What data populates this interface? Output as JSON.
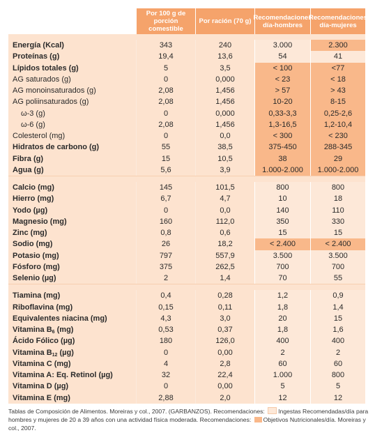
{
  "headers": [
    "",
    "Por 100 g de porción comestible",
    "Por ración (70 g)",
    "Recomendaciones día-hombres",
    "Recomendaciones día-mujeres"
  ],
  "groups": [
    [
      {
        "label": "Energía (Kcal)",
        "bold": true,
        "v": [
          "343",
          "240",
          "3.000",
          "2.300"
        ],
        "t": [
          "r",
          "o"
        ]
      },
      {
        "label": "Proteínas (g)",
        "bold": true,
        "v": [
          "19,4",
          "13,6",
          "54",
          "41"
        ],
        "t": [
          "r",
          "r"
        ]
      },
      {
        "label": "Lípidos totales (g)",
        "bold": true,
        "v": [
          "5",
          "3,5",
          "< 100",
          "<77"
        ],
        "t": [
          "o",
          "o"
        ]
      },
      {
        "label": "AG saturados (g)",
        "bold": false,
        "v": [
          "0",
          "0,000",
          "< 23",
          "< 18"
        ],
        "t": [
          "o",
          "o"
        ]
      },
      {
        "label": "AG monoinsaturados (g)",
        "bold": false,
        "v": [
          "2,08",
          "1,456",
          "> 57",
          "> 43"
        ],
        "t": [
          "o",
          "o"
        ]
      },
      {
        "label": "AG poliinsaturados (g)",
        "bold": false,
        "v": [
          "2,08",
          "1,456",
          "10-20",
          "8-15"
        ],
        "t": [
          "o",
          "o"
        ]
      },
      {
        "label": "ω-3 (g)",
        "bold": false,
        "indent": true,
        "v": [
          "0",
          "0,000",
          "0,33-3,3",
          "0,25-2,6"
        ],
        "t": [
          "o",
          "o"
        ]
      },
      {
        "label": "ω-6 (g)",
        "bold": false,
        "indent": true,
        "v": [
          "2,08",
          "1,456",
          "1,3-16,5",
          "1,2-10,4"
        ],
        "t": [
          "o",
          "o"
        ]
      },
      {
        "label": "Colesterol (mg)",
        "bold": false,
        "v": [
          "0",
          "0,0",
          "< 300",
          "< 230"
        ],
        "t": [
          "o",
          "o"
        ]
      },
      {
        "label": "Hidratos de carbono (g)",
        "bold": true,
        "v": [
          "55",
          "38,5",
          "375-450",
          "288-345"
        ],
        "t": [
          "o",
          "o"
        ]
      },
      {
        "label": "Fibra (g)",
        "bold": true,
        "v": [
          "15",
          "10,5",
          "38",
          "29"
        ],
        "t": [
          "o",
          "o"
        ]
      },
      {
        "label": "Agua (g)",
        "bold": true,
        "v": [
          "5,6",
          "3,9",
          "1.000-2.000",
          "1.000-2.000"
        ],
        "t": [
          "o",
          "o"
        ]
      }
    ],
    [
      {
        "label": "Calcio (mg)",
        "bold": true,
        "v": [
          "145",
          "101,5",
          "800",
          "800"
        ],
        "t": [
          "r",
          "r"
        ]
      },
      {
        "label": "Hierro (mg)",
        "bold": true,
        "v": [
          "6,7",
          "4,7",
          "10",
          "18"
        ],
        "t": [
          "r",
          "r"
        ]
      },
      {
        "label": "Yodo (µg)",
        "bold": true,
        "v": [
          "0",
          "0,0",
          "140",
          "110"
        ],
        "t": [
          "r",
          "r"
        ]
      },
      {
        "label": "Magnesio (mg)",
        "bold": true,
        "v": [
          "160",
          "112,0",
          "350",
          "330"
        ],
        "t": [
          "r",
          "r"
        ]
      },
      {
        "label": "Zinc (mg)",
        "bold": true,
        "v": [
          "0,8",
          "0,6",
          "15",
          "15"
        ],
        "t": [
          "r",
          "r"
        ]
      },
      {
        "label": "Sodio (mg)",
        "bold": true,
        "v": [
          "26",
          "18,2",
          "< 2.400",
          "< 2.400"
        ],
        "t": [
          "o",
          "o"
        ]
      },
      {
        "label": "Potasio (mg)",
        "bold": true,
        "v": [
          "797",
          "557,9",
          "3.500",
          "3.500"
        ],
        "t": [
          "r",
          "r"
        ]
      },
      {
        "label": "Fósforo (mg)",
        "bold": true,
        "v": [
          "375",
          "262,5",
          "700",
          "700"
        ],
        "t": [
          "r",
          "r"
        ]
      },
      {
        "label": "Selenio (µg)",
        "bold": true,
        "v": [
          "2",
          "1,4",
          "70",
          "55"
        ],
        "t": [
          "r",
          "r"
        ]
      }
    ],
    [
      {
        "label": "Tiamina (mg)",
        "bold": true,
        "v": [
          "0,4",
          "0,28",
          "1,2",
          "0,9"
        ],
        "t": [
          "r",
          "r"
        ]
      },
      {
        "label": "Riboflavina  (mg)",
        "bold": true,
        "v": [
          "0,15",
          "0,11",
          "1,8",
          "1,4"
        ],
        "t": [
          "r",
          "r"
        ]
      },
      {
        "label": "Equivalentes niacina (mg)",
        "bold": true,
        "v": [
          "4,3",
          "3,0",
          "20",
          "15"
        ],
        "t": [
          "r",
          "r"
        ]
      },
      {
        "label": "Vitamina B",
        "sub": "6",
        "suffix": " (mg)",
        "bold": true,
        "v": [
          "0,53",
          "0,37",
          "1,8",
          "1,6"
        ],
        "t": [
          "r",
          "r"
        ]
      },
      {
        "label": "Ácido Fólico (µg)",
        "bold": true,
        "v": [
          "180",
          "126,0",
          "400",
          "400"
        ],
        "t": [
          "r",
          "r"
        ]
      },
      {
        "label": "Vitamina B",
        "sub": "12",
        "suffix": " (µg)",
        "bold": true,
        "v": [
          "0",
          "0,00",
          "2",
          "2"
        ],
        "t": [
          "r",
          "r"
        ]
      },
      {
        "label": "Vitamina C (mg)",
        "bold": true,
        "v": [
          "4",
          "2,8",
          "60",
          "60"
        ],
        "t": [
          "r",
          "r"
        ]
      },
      {
        "label": "Vitamina A: Eq. Retinol (µg)",
        "bold": true,
        "v": [
          "32",
          "22,4",
          "1.000",
          "800"
        ],
        "t": [
          "r",
          "r"
        ]
      },
      {
        "label": "Vitamina D (µg)",
        "bold": true,
        "v": [
          "0",
          "0,00",
          "5",
          "5"
        ],
        "t": [
          "r",
          "r"
        ]
      },
      {
        "label": "Vitamina E (mg)",
        "bold": true,
        "v": [
          "2,88",
          "2,0",
          "12",
          "12"
        ],
        "t": [
          "r",
          "r"
        ]
      }
    ]
  ],
  "footer": {
    "part1": "Tablas de Composición de Alimentos. Moreiras y col., 2007. (GARBANZOS).  Recomendaciones: ",
    "legend1": "Ingestas Recomendadas/día para hombres y mujeres de 20 a 39 años con una actividad física moderada.  Recomendaciones: ",
    "legend2": "Objetivos Nutricionales/día. Moreiras y col., 2007."
  },
  "colors": {
    "header": "#f5a36b",
    "cell": "#fde3cf",
    "ingestas": "#fde8d8",
    "objetivos": "#f9b88a"
  }
}
